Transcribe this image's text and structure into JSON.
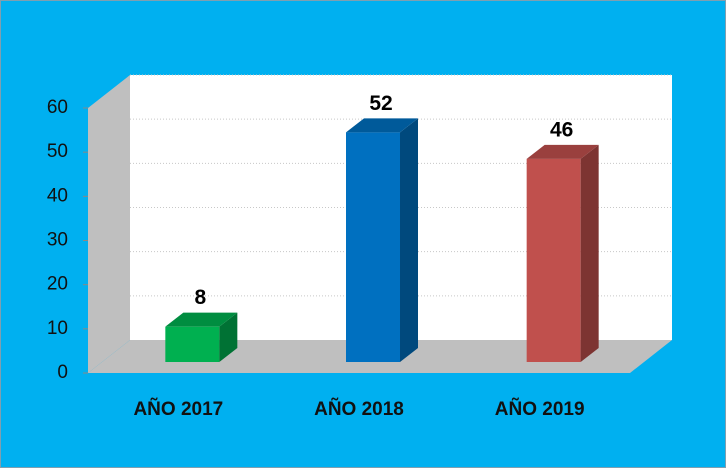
{
  "chart_data": {
    "type": "bar3d",
    "categories": [
      "AÑO 2017",
      "AÑO 2018",
      "AÑO 2019"
    ],
    "values": [
      8,
      52,
      46
    ],
    "colors": [
      "#00B050",
      "#0070C0",
      "#C0504D"
    ],
    "ylim": [
      0,
      60
    ],
    "yticks": [
      0,
      10,
      20,
      30,
      40,
      50,
      60
    ],
    "grid": true
  }
}
